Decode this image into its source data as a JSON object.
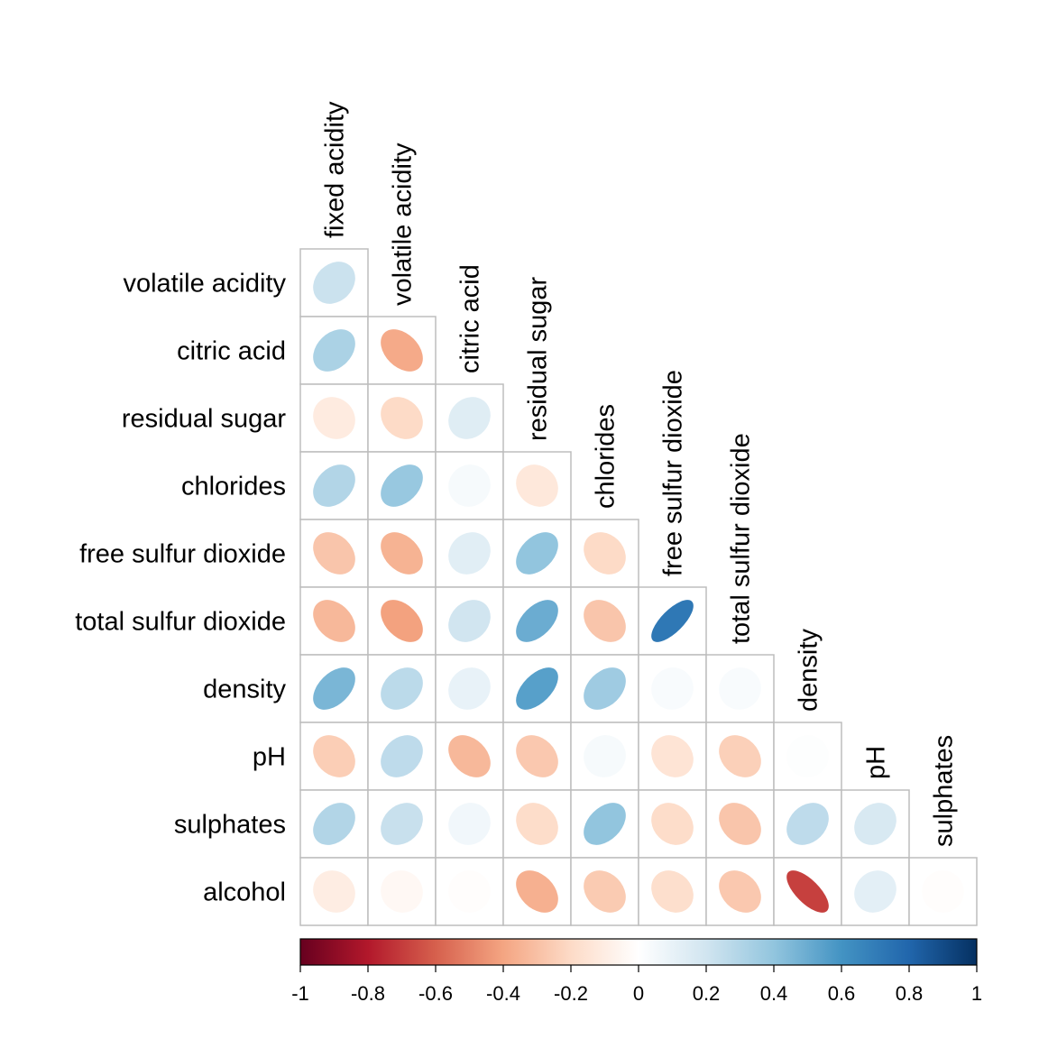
{
  "chart_data": {
    "type": "heatmap",
    "variables": [
      "fixed acidity",
      "volatile acidity",
      "citric acid",
      "residual sugar",
      "chlorides",
      "free sulfur dioxide",
      "total sulfur dioxide",
      "density",
      "pH",
      "sulphates",
      "alcohol"
    ],
    "row_labels": [
      "volatile acidity",
      "citric acid",
      "residual sugar",
      "chlorides",
      "free sulfur dioxide",
      "total sulfur dioxide",
      "density",
      "pH",
      "sulphates",
      "alcohol"
    ],
    "column_labels": [
      "fixed acidity",
      "volatile acidity",
      "citric acid",
      "residual sugar",
      "chlorides",
      "free sulfur dioxide",
      "total sulfur dioxide",
      "density",
      "pH",
      "sulphates"
    ],
    "matrix": [
      [
        0.22
      ],
      [
        0.32,
        -0.38
      ],
      [
        -0.11,
        -0.2,
        0.14
      ],
      [
        0.3,
        0.38,
        0.04,
        -0.13
      ],
      [
        -0.28,
        -0.35,
        0.13,
        0.4,
        -0.2
      ],
      [
        -0.33,
        -0.41,
        0.2,
        0.5,
        -0.28,
        0.72
      ],
      [
        0.46,
        0.27,
        0.1,
        0.55,
        0.36,
        0.03,
        0.03
      ],
      [
        -0.25,
        0.26,
        -0.33,
        -0.27,
        0.04,
        -0.15,
        -0.24,
        0.01
      ],
      [
        0.3,
        0.23,
        0.06,
        -0.19,
        0.4,
        -0.19,
        -0.28,
        0.26,
        0.17
      ],
      [
        -0.1,
        -0.04,
        -0.01,
        -0.36,
        -0.26,
        -0.18,
        -0.27,
        -0.69,
        0.12,
        -0.01
      ]
    ],
    "colorbar": {
      "range": [
        -1,
        1
      ],
      "ticks": [
        "-1",
        "-0.8",
        "-0.6",
        "-0.4",
        "-0.2",
        "0",
        "0.2",
        "0.4",
        "0.6",
        "0.8",
        "1"
      ],
      "colors": [
        "#67001F",
        "#B2182B",
        "#D6604D",
        "#F4A582",
        "#FDDBC7",
        "#FFFFFF",
        "#D1E5F0",
        "#92C5DE",
        "#4393C3",
        "#2166AC",
        "#053061"
      ]
    },
    "shape": "ellipse",
    "layout": "lower triangle",
    "grid": true
  }
}
